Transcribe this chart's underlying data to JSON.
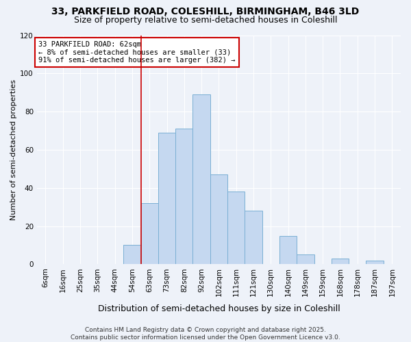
{
  "title": "33, PARKFIELD ROAD, COLESHILL, BIRMINGHAM, B46 3LD",
  "subtitle": "Size of property relative to semi-detached houses in Coleshill",
  "xlabel": "Distribution of semi-detached houses by size in Coleshill",
  "ylabel": "Number of semi-detached properties",
  "bar_labels": [
    "6sqm",
    "16sqm",
    "25sqm",
    "35sqm",
    "44sqm",
    "54sqm",
    "63sqm",
    "73sqm",
    "82sqm",
    "92sqm",
    "102sqm",
    "111sqm",
    "121sqm",
    "130sqm",
    "140sqm",
    "149sqm",
    "159sqm",
    "168sqm",
    "178sqm",
    "187sqm",
    "197sqm"
  ],
  "bar_values": [
    0,
    0,
    0,
    0,
    0,
    10,
    32,
    69,
    71,
    89,
    47,
    38,
    28,
    0,
    15,
    5,
    0,
    3,
    0,
    2,
    0
  ],
  "bar_color": "#c5d8f0",
  "bar_edge_color": "#7aafd4",
  "highlight_line_index": 6,
  "annotation_title": "33 PARKFIELD ROAD: 62sqm",
  "annotation_line1": "← 8% of semi-detached houses are smaller (33)",
  "annotation_line2": "91% of semi-detached houses are larger (382) →",
  "annotation_box_color": "#ffffff",
  "annotation_border_color": "#cc0000",
  "ylim": [
    0,
    120
  ],
  "yticks": [
    0,
    20,
    40,
    60,
    80,
    100,
    120
  ],
  "footer_line1": "Contains HM Land Registry data © Crown copyright and database right 2025.",
  "footer_line2": "Contains public sector information licensed under the Open Government Licence v3.0.",
  "title_fontsize": 10,
  "subtitle_fontsize": 9,
  "xlabel_fontsize": 9,
  "ylabel_fontsize": 8,
  "tick_fontsize": 7.5,
  "footer_fontsize": 6.5,
  "annotation_fontsize": 7.5,
  "background_color": "#eef2f9"
}
